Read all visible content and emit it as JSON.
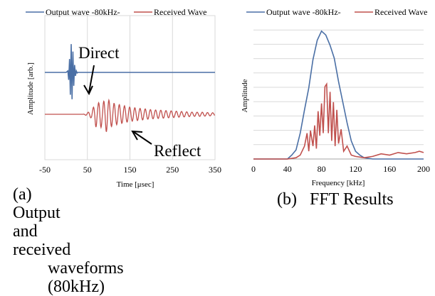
{
  "colors": {
    "output": "#4a6fa5",
    "received": "#c0504d",
    "grid": "#d9d9d9",
    "axis": "#a6a6a6"
  },
  "chart_data": [
    {
      "type": "line",
      "panel": "a",
      "xlabel": "Time [μsec]",
      "ylabel": "Amplitude [arb.]",
      "xlim": [
        -50,
        350
      ],
      "xticks": [
        -50,
        50,
        150,
        250,
        350
      ],
      "grid": "vertical",
      "legend": "top",
      "series": [
        {
          "name": "Output wave -80kHz-",
          "offset": 0.7,
          "x": [
            -50,
            0,
            4,
            6,
            8,
            10,
            12,
            14,
            16,
            18,
            20,
            22,
            24,
            26,
            28,
            32,
            350
          ],
          "y": [
            0,
            0,
            0.05,
            -0.25,
            0.45,
            -0.75,
            0.95,
            -0.9,
            0.7,
            -0.45,
            0.25,
            -0.12,
            0.05,
            -0.02,
            0,
            0,
            0
          ]
        },
        {
          "name": "Received Wave",
          "offset": -0.25,
          "x": [
            -50,
            40,
            50,
            60,
            65,
            70,
            75,
            80,
            85,
            90,
            95,
            100,
            105,
            110,
            120,
            130,
            140,
            150,
            160,
            170,
            180,
            190,
            200,
            220,
            240,
            260,
            280,
            300,
            320,
            340,
            350
          ],
          "y": [
            0,
            0,
            0.03,
            0.08,
            0.15,
            0.25,
            0.2,
            0.3,
            0.2,
            0.28,
            0.35,
            0.28,
            0.25,
            0.22,
            0.2,
            0.18,
            0.16,
            0.14,
            0.13,
            0.12,
            0.11,
            0.1,
            0.09,
            0.08,
            0.07,
            0.06,
            0.05,
            0.04,
            0.04,
            0.03,
            0.03
          ]
        }
      ],
      "annotations": [
        {
          "text": "Direct"
        },
        {
          "text": "Reflect"
        }
      ]
    },
    {
      "type": "line",
      "panel": "b",
      "xlabel": "Frequency [kHz]",
      "ylabel": "Amplitude",
      "xlim": [
        0,
        200
      ],
      "ylim": [
        0,
        1
      ],
      "xticks": [
        0,
        40,
        80,
        120,
        160,
        200
      ],
      "grid": "horizontal",
      "legend": "top",
      "series": [
        {
          "name": "Output wave -80kHz-",
          "x": [
            0,
            40,
            45,
            50,
            55,
            60,
            65,
            70,
            75,
            80,
            85,
            90,
            95,
            100,
            105,
            110,
            115,
            120,
            125,
            130,
            140,
            200
          ],
          "y": [
            0,
            0,
            0.03,
            0.07,
            0.2,
            0.38,
            0.55,
            0.77,
            0.92,
            0.99,
            0.96,
            0.88,
            0.78,
            0.6,
            0.44,
            0.28,
            0.14,
            0.06,
            0.03,
            0.01,
            0,
            0
          ]
        },
        {
          "name": "Received Wave",
          "x": [
            0,
            40,
            50,
            55,
            60,
            63,
            65,
            67,
            70,
            72,
            74,
            76,
            78,
            80,
            82,
            84,
            86,
            88,
            90,
            92,
            94,
            96,
            98,
            100,
            103,
            106,
            110,
            115,
            120,
            130,
            140,
            150,
            160,
            170,
            180,
            190,
            195,
            200
          ],
          "y": [
            0,
            0,
            0.01,
            0.03,
            0.1,
            0.2,
            0.06,
            0.22,
            0.1,
            0.26,
            0.08,
            0.37,
            0.18,
            0.43,
            0.2,
            0.56,
            0.58,
            0.2,
            0.52,
            0.14,
            0.44,
            0.1,
            0.38,
            0.12,
            0.23,
            0.06,
            0.1,
            0.03,
            0.02,
            0.01,
            0.02,
            0.04,
            0.03,
            0.05,
            0.04,
            0.05,
            0.06,
            0.05
          ]
        }
      ]
    }
  ],
  "captions": {
    "a": {
      "line1": [
        "(a)",
        "Output",
        "and",
        "received"
      ],
      "line2": [
        "waveforms",
        "(80kHz)"
      ]
    },
    "b": {
      "text": "(b)   FFT Results"
    }
  }
}
